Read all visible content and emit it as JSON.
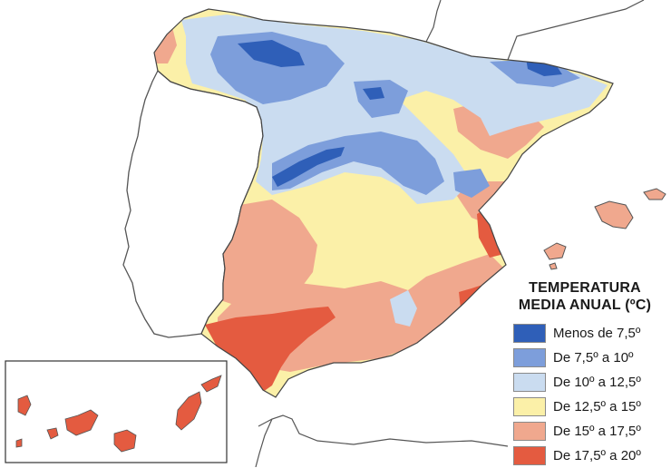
{
  "legend": {
    "title_line1": "TEMPERATURA",
    "title_line2": "MEDIA ANUAL (ºC)",
    "items": [
      {
        "label": "Menos de 7,5º",
        "color": "#2f5fb8"
      },
      {
        "label": "De 7,5º a 10º",
        "color": "#7d9edb"
      },
      {
        "label": "De 10º a 12,5º",
        "color": "#cadcf0"
      },
      {
        "label": "De 12,5º a 15º",
        "color": "#fbf0a8"
      },
      {
        "label": "De 15º a 17,5º",
        "color": "#f0a88e"
      },
      {
        "label": "De 17,5º a 20º",
        "color": "#e45b40"
      }
    ]
  },
  "colors": {
    "coast": "#444444",
    "land_outline": "#555555",
    "background": "#ffffff"
  }
}
